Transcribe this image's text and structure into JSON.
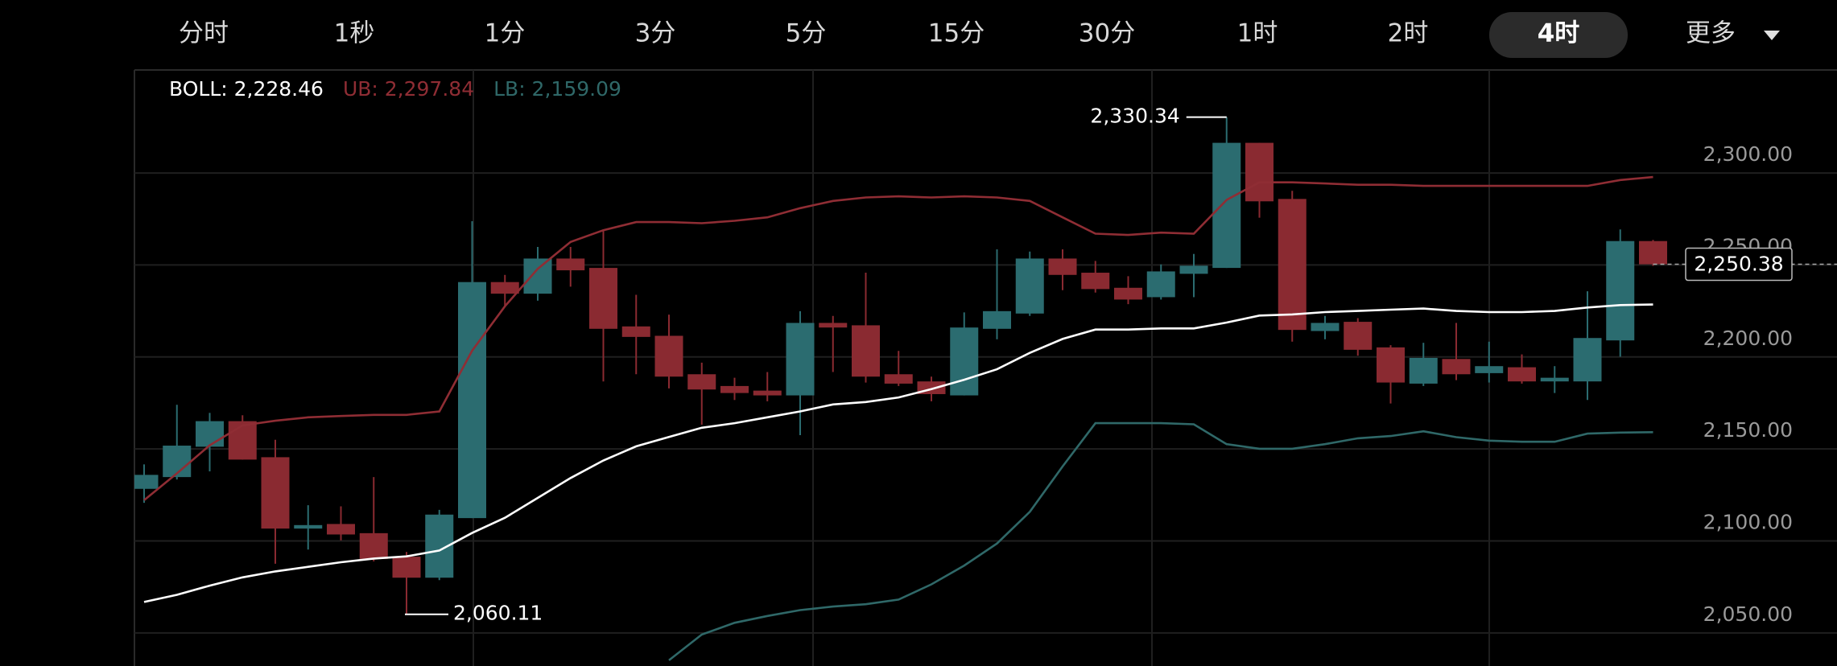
{
  "tabs": [
    "分时",
    "1秒",
    "1分",
    "3分",
    "5分",
    "15分",
    "30分",
    "1时",
    "2时",
    "4时",
    "更多"
  ],
  "active_tab": 9,
  "chart_data": {
    "type": "candlestick",
    "open": [
      2128.3,
      2134.7,
      2151.2,
      2165.1,
      2145.5,
      2106.7,
      2109.2,
      2104.2,
      2091.4,
      2080.0,
      2112.4,
      2240.7,
      2234.4,
      2253.5,
      2248.4,
      2216.6,
      2211.5,
      2190.6,
      2184.2,
      2181.7,
      2179.1,
      2218.5,
      2217.2,
      2190.6,
      2186.7,
      2179.1,
      2215.3,
      2223.6,
      2253.5,
      2245.8,
      2237.6,
      2232.5,
      2245.2,
      2248.4,
      2316.4,
      2285.9,
      2214.1,
      2219.1,
      2205.2,
      2185.5,
      2198.9,
      2191.2,
      2194.4,
      2186.7,
      2186.7,
      2209.0,
      2263.0
    ],
    "high": [
      2141.6,
      2174.0,
      2169.6,
      2168.3,
      2155.0,
      2119.4,
      2118.8,
      2134.7,
      2094.0,
      2116.9,
      2273.8,
      2244.6,
      2259.8,
      2259.8,
      2269.3,
      2233.8,
      2223.0,
      2196.9,
      2188.7,
      2191.8,
      2224.9,
      2222.3,
      2245.8,
      2203.3,
      2189.3,
      2224.2,
      2258.5,
      2257.3,
      2258.5,
      2252.2,
      2243.9,
      2250.3,
      2256.0,
      2330.34,
      2316.4,
      2290.3,
      2222.3,
      2221.1,
      2206.4,
      2207.7,
      2218.5,
      2208.3,
      2201.4,
      2195.0,
      2235.7,
      2269.3,
      2263.6
    ],
    "low": [
      2120.7,
      2133.4,
      2137.8,
      2144.2,
      2087.6,
      2095.3,
      2100.3,
      2088.9,
      2060.11,
      2078.7,
      2112.4,
      2227.4,
      2230.6,
      2238.2,
      2186.7,
      2190.6,
      2182.9,
      2163.2,
      2176.6,
      2175.9,
      2157.5,
      2191.8,
      2186.1,
      2184.2,
      2175.9,
      2179.1,
      2209.6,
      2222.3,
      2236.3,
      2235.0,
      2228.7,
      2231.2,
      2232.5,
      2248.4,
      2275.7,
      2208.3,
      2209.6,
      2200.7,
      2174.7,
      2184.2,
      2187.4,
      2186.1,
      2185.5,
      2180.4,
      2176.6,
      2200.1,
      2249.5
    ],
    "close": [
      2135.9,
      2151.8,
      2165.1,
      2144.2,
      2106.7,
      2108.6,
      2103.5,
      2090.2,
      2080.0,
      2114.3,
      2240.7,
      2234.4,
      2253.5,
      2247.1,
      2215.3,
      2210.9,
      2189.3,
      2182.3,
      2180.4,
      2179.1,
      2218.5,
      2216.0,
      2189.3,
      2185.5,
      2179.8,
      2216.0,
      2224.9,
      2253.5,
      2244.6,
      2236.9,
      2231.2,
      2246.5,
      2249.6,
      2316.4,
      2284.6,
      2214.7,
      2218.5,
      2203.9,
      2186.1,
      2199.5,
      2190.6,
      2195.0,
      2186.7,
      2188.7,
      2210.3,
      2263.0,
      2250.38
    ],
    "up_color": "#2b6c70",
    "down_color": "#8a2a31",
    "series": [
      {
        "name": "BOLL: 2,228.46",
        "color": "#ffffff",
        "values": [
          2066.8,
          2070.7,
          2075.7,
          2080.2,
          2083.4,
          2085.9,
          2088.4,
          2090.4,
          2091.6,
          2094.8,
          2104.3,
          2112.6,
          2123.4,
          2134.2,
          2143.7,
          2151.4,
          2156.5,
          2161.5,
          2164.0,
          2167.2,
          2170.4,
          2174.2,
          2175.5,
          2178.0,
          2182.5,
          2187.6,
          2193.3,
          2202.2,
          2209.8,
          2214.9,
          2214.9,
          2215.5,
          2215.5,
          2218.7,
          2222.5,
          2223.1,
          2224.4,
          2225.0,
          2225.7,
          2226.3,
          2225.0,
          2224.4,
          2224.4,
          2225.0,
          2226.9,
          2228.2,
          2228.5
        ]
      },
      {
        "name": "UB: 2,297.84",
        "color": "#8f2d34",
        "values": [
          2122.1,
          2136.7,
          2152.0,
          2162.8,
          2165.3,
          2167.2,
          2167.9,
          2168.5,
          2168.5,
          2170.4,
          2203.4,
          2227.6,
          2247.9,
          2262.5,
          2268.9,
          2273.3,
          2273.3,
          2272.7,
          2274.0,
          2275.9,
          2280.9,
          2284.8,
          2286.7,
          2287.3,
          2286.7,
          2287.3,
          2286.7,
          2284.8,
          2275.9,
          2267.0,
          2266.3,
          2267.6,
          2267.0,
          2285.4,
          2294.9,
          2294.9,
          2294.3,
          2293.6,
          2293.6,
          2293.0,
          2293.0,
          2293.0,
          2293.0,
          2293.0,
          2293.0,
          2296.2,
          2297.8
        ]
      },
      {
        "name": "LB: 2,159.09",
        "color": "#2f6868",
        "values": [
          null,
          null,
          null,
          null,
          null,
          null,
          null,
          null,
          null,
          null,
          null,
          null,
          null,
          null,
          null,
          null,
          2035.1,
          2049.1,
          2055.5,
          2059.2,
          2062.4,
          2064.3,
          2065.6,
          2068.1,
          2076.4,
          2086.6,
          2098.6,
          2115.8,
          2140.5,
          2164.0,
          2164.0,
          2164.0,
          2163.4,
          2152.6,
          2150.1,
          2150.1,
          2152.6,
          2155.8,
          2157.0,
          2159.6,
          2156.4,
          2154.5,
          2153.9,
          2153.9,
          2158.3,
          2158.9,
          2159.09
        ]
      }
    ],
    "high_label": "2,330.34",
    "low_label": "2,060.11",
    "last_price": {
      "value": 2250.38,
      "label": "2,250.38"
    },
    "ylim": [
      2032,
      2356
    ],
    "yticks": [
      {
        "value": 2050,
        "label": "2,050.00"
      },
      {
        "value": 2100,
        "label": "2,100.00"
      },
      {
        "value": 2150,
        "label": "2,150.00"
      },
      {
        "value": 2200,
        "label": "2,200.00"
      },
      {
        "value": 2250,
        "label": "2,250.00"
      },
      {
        "value": 2300,
        "label": "2,300.00"
      }
    ],
    "grid": true
  }
}
